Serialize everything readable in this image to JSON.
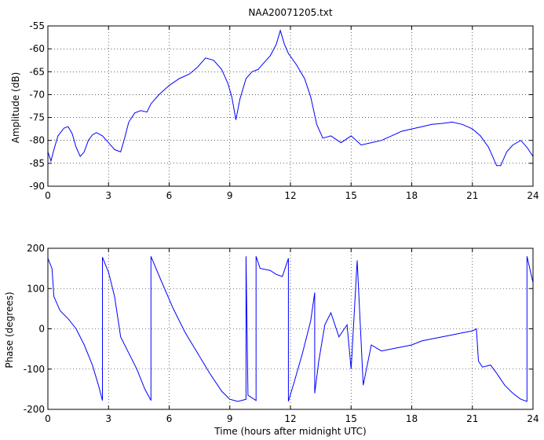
{
  "chart_data": [
    {
      "type": "line",
      "title": "NAA20071205.txt",
      "xlabel": "",
      "ylabel": "Amplitude (dB)",
      "xlim": [
        0,
        24
      ],
      "ylim": [
        -90,
        -55
      ],
      "xticks": [
        "0",
        "3",
        "6",
        "9",
        "12",
        "15",
        "18",
        "21",
        "24"
      ],
      "yticks": [
        "-55",
        "-60",
        "-65",
        "-70",
        "-75",
        "-80",
        "-85",
        "-90"
      ],
      "grid": true,
      "series_color": "#0000ff",
      "x": [
        0,
        0.15,
        0.3,
        0.5,
        0.8,
        1.0,
        1.2,
        1.4,
        1.6,
        1.8,
        2.0,
        2.2,
        2.4,
        2.7,
        3.0,
        3.3,
        3.6,
        3.8,
        4.0,
        4.3,
        4.6,
        4.9,
        5.1,
        5.5,
        6.0,
        6.5,
        7.0,
        7.4,
        7.8,
        8.2,
        8.6,
        8.9,
        9.1,
        9.3,
        9.5,
        9.8,
        10.1,
        10.4,
        10.7,
        11.0,
        11.3,
        11.5,
        11.7,
        11.9,
        12.3,
        12.7,
        13.0,
        13.3,
        13.6,
        14.0,
        14.5,
        15.0,
        15.5,
        16.0,
        16.5,
        17.0,
        17.5,
        18.0,
        18.5,
        19.0,
        19.5,
        20.0,
        20.5,
        21.0,
        21.4,
        21.8,
        22.0,
        22.2,
        22.4,
        22.7,
        23.0,
        23.4,
        23.7,
        24.0
      ],
      "y": [
        -82.5,
        -84.5,
        -82.0,
        -79.0,
        -77.3,
        -77.0,
        -78.5,
        -81.5,
        -83.5,
        -82.5,
        -80.0,
        -78.8,
        -78.3,
        -79.0,
        -80.5,
        -82.0,
        -82.5,
        -79.5,
        -76.0,
        -74.0,
        -73.5,
        -73.8,
        -72.0,
        -70.0,
        -68.0,
        -66.5,
        -65.5,
        -64.0,
        -62.0,
        -62.5,
        -64.5,
        -67.5,
        -70.5,
        -75.5,
        -71.0,
        -66.5,
        -65.0,
        -64.5,
        -63.0,
        -61.5,
        -59.0,
        -56.0,
        -59.0,
        -61.0,
        -63.5,
        -66.5,
        -70.5,
        -76.5,
        -79.5,
        -79.0,
        -80.5,
        -79.0,
        -81.0,
        -80.5,
        -80.0,
        -79.0,
        -78.0,
        -77.5,
        -77.0,
        -76.5,
        -76.3,
        -76.0,
        -76.5,
        -77.5,
        -79.0,
        -81.5,
        -83.5,
        -85.5,
        -85.5,
        -82.5,
        -81.0,
        -80.0,
        -81.5,
        -83.5
      ]
    },
    {
      "type": "line",
      "title": "",
      "xlabel": "Time (hours after midnight UTC)",
      "ylabel": "Phase (degrees)",
      "xlim": [
        0,
        24
      ],
      "ylim": [
        -200,
        200
      ],
      "xticks": [
        "0",
        "3",
        "6",
        "9",
        "12",
        "15",
        "18",
        "21",
        "24"
      ],
      "yticks": [
        "200",
        "100",
        "0",
        "-100",
        "-200"
      ],
      "grid": true,
      "series_color": "#0000ff",
      "x": [
        0.0,
        0.2,
        0.3,
        0.6,
        1.0,
        1.4,
        1.8,
        2.2,
        2.5,
        2.7,
        2.7,
        3.0,
        3.3,
        3.6,
        4.0,
        4.4,
        4.8,
        5.1,
        5.1,
        5.6,
        6.2,
        6.8,
        7.4,
        8.0,
        8.6,
        9.0,
        9.4,
        9.8,
        9.8,
        9.9,
        10.3,
        10.3,
        10.5,
        11.0,
        11.3,
        11.6,
        11.9,
        11.9,
        12.2,
        12.6,
        13.0,
        13.2,
        13.2,
        13.4,
        13.7,
        14.0,
        14.4,
        14.8,
        15.0,
        15.3,
        15.6,
        16.0,
        16.5,
        17.0,
        17.5,
        18.0,
        18.5,
        19.0,
        19.5,
        20.0,
        20.5,
        21.0,
        21.2,
        21.3,
        21.5,
        21.9,
        22.2,
        22.6,
        23.0,
        23.4,
        23.7,
        23.7,
        24.0
      ],
      "y": [
        175,
        150,
        80,
        45,
        25,
        0,
        -40,
        -90,
        -140,
        -178,
        178,
        140,
        80,
        -20,
        -60,
        -100,
        -150,
        -178,
        180,
        120,
        50,
        -10,
        -60,
        -110,
        -155,
        -175,
        -180,
        -175,
        180,
        -165,
        -178,
        180,
        150,
        145,
        135,
        130,
        175,
        -180,
        -130,
        -60,
        20,
        90,
        -160,
        -80,
        10,
        40,
        -20,
        10,
        -100,
        170,
        -140,
        -40,
        -55,
        -50,
        -45,
        -40,
        -30,
        -25,
        -20,
        -15,
        -10,
        -5,
        0,
        -80,
        -95,
        -90,
        -110,
        -140,
        -160,
        -175,
        -180,
        180,
        115
      ]
    }
  ]
}
